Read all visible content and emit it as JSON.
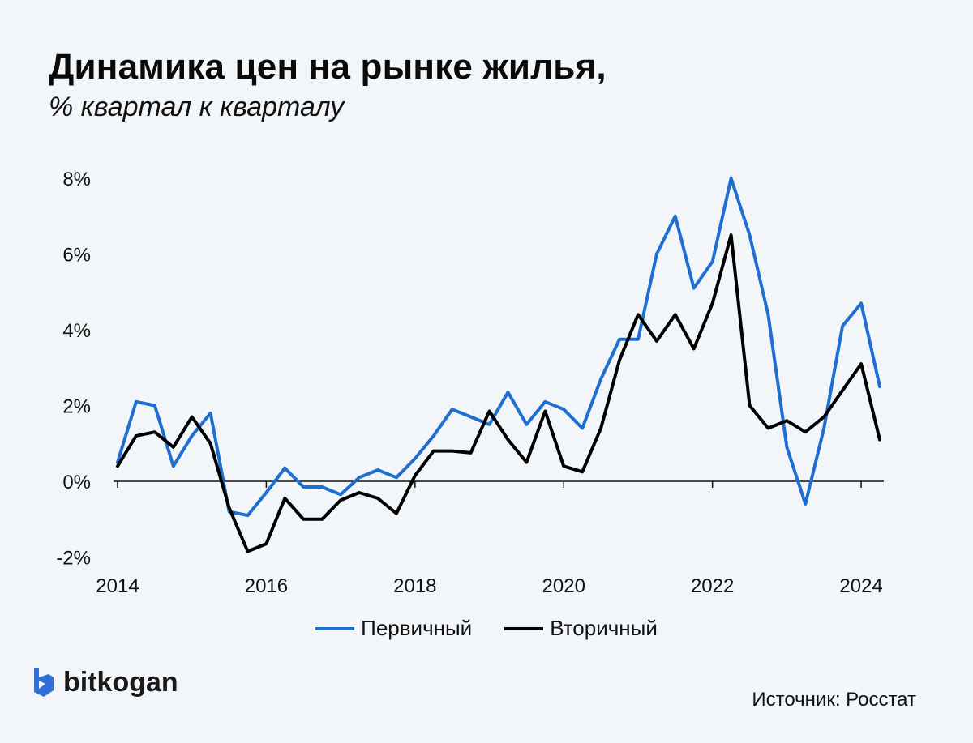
{
  "title": "Динамика цен на рынке жилья,",
  "subtitle": "% квартал к кварталу",
  "source": "Источник: Росстат",
  "brand": "bitkogan",
  "colors": {
    "primary": "#1f6fd1",
    "secondary": "#000000",
    "background": "#f3f6f9",
    "brand_icon": "#2f6fd6"
  },
  "chart_data": {
    "type": "line",
    "x_start": 2014.0,
    "x_step": 0.25,
    "x_ticks": [
      2014,
      2016,
      2018,
      2020,
      2022,
      2024
    ],
    "x_tick_labels": [
      "2014",
      "2016",
      "2018",
      "2020",
      "2022",
      "2024"
    ],
    "y_ticks": [
      -2,
      0,
      2,
      4,
      6,
      8
    ],
    "y_tick_labels": [
      "-2%",
      "0%",
      "2%",
      "4%",
      "6%",
      "8%"
    ],
    "xlim": [
      2014.0,
      2024.25
    ],
    "ylim": [
      -2,
      8
    ],
    "series": [
      {
        "name": "Первичный",
        "color": "#1f6fd1",
        "values": [
          0.5,
          2.1,
          2.0,
          0.4,
          1.2,
          1.8,
          -0.8,
          -0.9,
          -0.3,
          0.35,
          -0.15,
          -0.15,
          -0.35,
          0.1,
          0.3,
          0.1,
          0.6,
          1.2,
          1.9,
          1.7,
          1.5,
          2.35,
          1.5,
          2.1,
          1.9,
          1.4,
          2.7,
          3.75,
          3.75,
          6.0,
          7.0,
          5.1,
          5.8,
          8.0,
          6.5,
          4.4,
          0.9,
          -0.6,
          1.4,
          4.1,
          4.7,
          2.5
        ]
      },
      {
        "name": "Вторичный",
        "color": "#000000",
        "values": [
          0.4,
          1.2,
          1.3,
          0.9,
          1.7,
          1.0,
          -0.7,
          -1.85,
          -1.65,
          -0.45,
          -1.0,
          -1.0,
          -0.5,
          -0.3,
          -0.45,
          -0.85,
          0.15,
          0.8,
          0.8,
          0.75,
          1.85,
          1.1,
          0.5,
          1.85,
          0.4,
          0.25,
          1.4,
          3.2,
          4.4,
          3.7,
          4.4,
          3.5,
          4.7,
          6.5,
          2.0,
          1.4,
          1.6,
          1.3,
          1.7,
          2.4,
          3.1,
          1.1
        ]
      }
    ],
    "legend": [
      {
        "name": "Первичный",
        "color": "#1f6fd1"
      },
      {
        "name": "Вторичный",
        "color": "#000000"
      }
    ]
  }
}
